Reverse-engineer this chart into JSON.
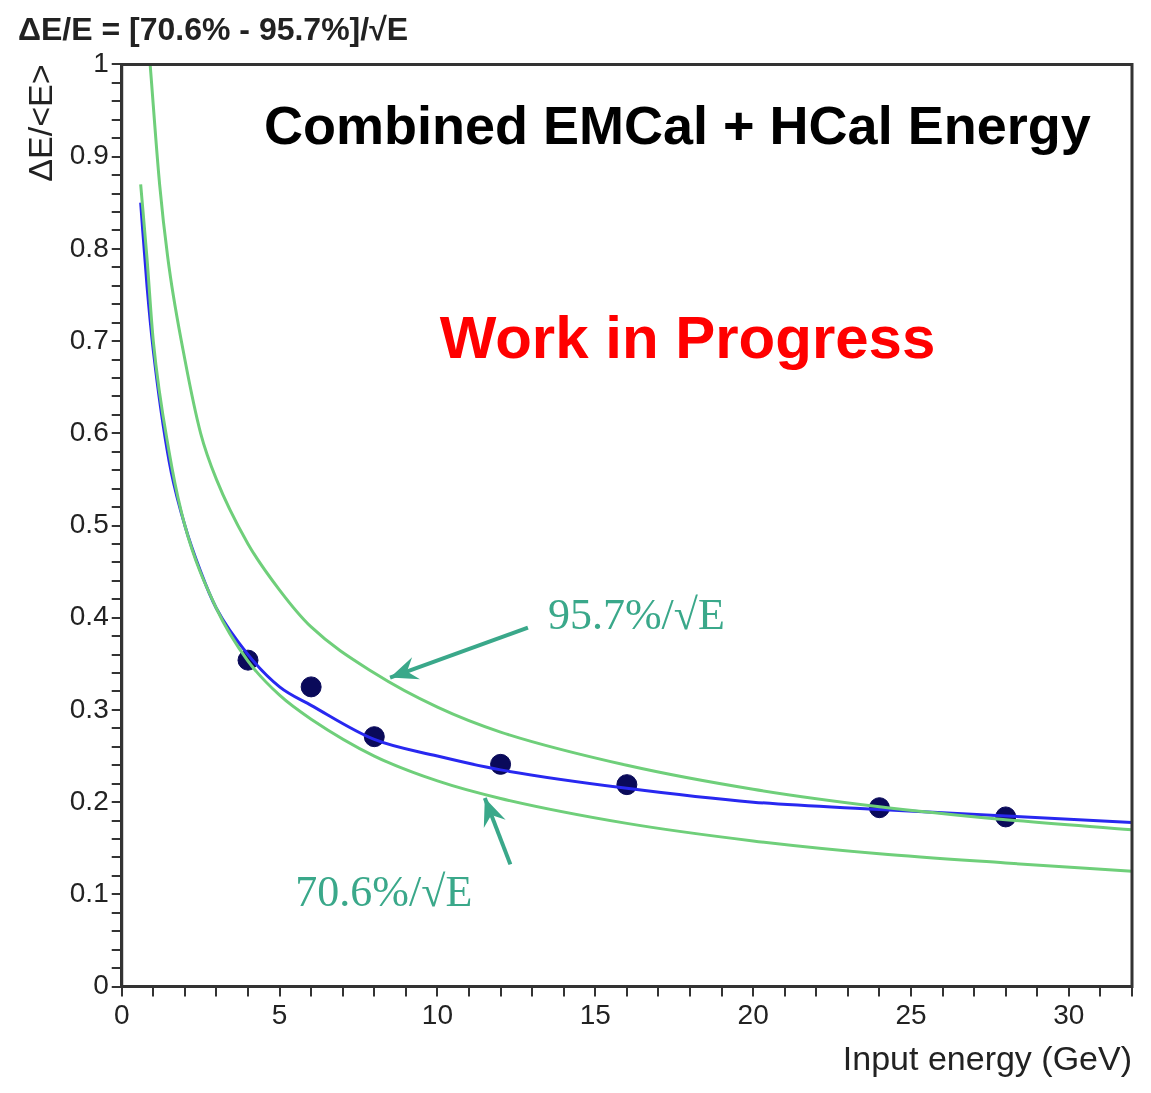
{
  "chart_data": {
    "type": "line",
    "title": "ΔE/E = [70.6% - 95.7%]/√E",
    "xlabel": "Input energy (GeV)",
    "ylabel": "ΔE/<E>",
    "annotations": [
      "Combined EMCal + HCal Energy",
      "Work in Progress"
    ],
    "xlim": [
      0,
      32
    ],
    "ylim": [
      0,
      1
    ],
    "xticks": [
      0,
      {
        "value": 1,
        "label": null
      },
      {
        "value": 2,
        "label": null
      },
      {
        "value": 3,
        "label": null
      },
      {
        "value": 4,
        "label": null
      },
      5,
      {
        "value": 6,
        "label": null
      },
      {
        "value": 7,
        "label": null
      },
      {
        "value": 8,
        "label": null
      },
      {
        "value": 9,
        "label": null
      },
      10,
      {
        "value": 11,
        "label": null
      },
      {
        "value": 12,
        "label": null
      },
      {
        "value": 13,
        "label": null
      },
      {
        "value": 14,
        "label": null
      },
      15,
      {
        "value": 16,
        "label": null
      },
      {
        "value": 17,
        "label": null
      },
      {
        "value": 18,
        "label": null
      },
      {
        "value": 19,
        "label": null
      },
      20,
      {
        "value": 21,
        "label": null
      },
      {
        "value": 22,
        "label": null
      },
      {
        "value": 23,
        "label": null
      },
      {
        "value": 24,
        "label": null
      },
      25,
      {
        "value": 26,
        "label": null
      },
      {
        "value": 27,
        "label": null
      },
      {
        "value": 28,
        "label": null
      },
      {
        "value": 29,
        "label": null
      },
      30,
      {
        "value": 31,
        "label": null
      },
      {
        "value": 32,
        "label": null
      }
    ],
    "yticks": [
      0,
      {
        "value": 0.02,
        "label": null
      },
      {
        "value": 0.04,
        "label": null
      },
      {
        "value": 0.06,
        "label": null
      },
      {
        "value": 0.08,
        "label": null
      },
      0.1,
      {
        "value": 0.12,
        "label": null
      },
      {
        "value": 0.14,
        "label": null
      },
      {
        "value": 0.16,
        "label": null
      },
      {
        "value": 0.18,
        "label": null
      },
      0.2,
      {
        "value": 0.22,
        "label": null
      },
      {
        "value": 0.24,
        "label": null
      },
      {
        "value": 0.26,
        "label": null
      },
      {
        "value": 0.28,
        "label": null
      },
      0.3,
      {
        "value": 0.32,
        "label": null
      },
      {
        "value": 0.34,
        "label": null
      },
      {
        "value": 0.36,
        "label": null
      },
      {
        "value": 0.38,
        "label": null
      },
      0.4,
      {
        "value": 0.42,
        "label": null
      },
      {
        "value": 0.44,
        "label": null
      },
      {
        "value": 0.46,
        "label": null
      },
      {
        "value": 0.48,
        "label": null
      },
      0.5,
      {
        "value": 0.52,
        "label": null
      },
      {
        "value": 0.54,
        "label": null
      },
      {
        "value": 0.56,
        "label": null
      },
      {
        "value": 0.58,
        "label": null
      },
      0.6,
      {
        "value": 0.62,
        "label": null
      },
      {
        "value": 0.64,
        "label": null
      },
      {
        "value": 0.66,
        "label": null
      },
      {
        "value": 0.68,
        "label": null
      },
      0.7,
      {
        "value": 0.72,
        "label": null
      },
      {
        "value": 0.74,
        "label": null
      },
      {
        "value": 0.76,
        "label": null
      },
      {
        "value": 0.78,
        "label": null
      },
      0.8,
      {
        "value": 0.82,
        "label": null
      },
      {
        "value": 0.84,
        "label": null
      },
      {
        "value": 0.86,
        "label": null
      },
      {
        "value": 0.88,
        "label": null
      },
      0.9,
      {
        "value": 0.92,
        "label": null
      },
      {
        "value": 0.94,
        "label": null
      },
      {
        "value": 0.96,
        "label": null
      },
      {
        "value": 0.98,
        "label": null
      },
      1
    ],
    "grid": false,
    "legend": false,
    "series": [
      {
        "name": "95.7%/√E",
        "line_style": "solid",
        "color": "#6fcf7a",
        "x": [
          0.9,
          1.2,
          1.5,
          2,
          2.5,
          3,
          4,
          5,
          6,
          8,
          10,
          12,
          16,
          20,
          24,
          28,
          32
        ],
        "values": [
          1.0,
          0.87,
          0.78,
          0.68,
          0.6,
          0.55,
          0.48,
          0.43,
          0.39,
          0.34,
          0.303,
          0.276,
          0.24,
          0.214,
          0.195,
          0.181,
          0.17
        ]
      },
      {
        "name": "70.6%/√E",
        "line_style": "solid",
        "color": "#6fcf7a",
        "x": [
          0.6,
          0.8,
          1,
          1.5,
          2,
          3,
          4,
          5,
          6,
          8,
          10,
          12,
          16,
          20,
          24,
          28,
          32
        ],
        "values": [
          0.87,
          0.79,
          0.7,
          0.58,
          0.5,
          0.41,
          0.353,
          0.316,
          0.29,
          0.25,
          0.223,
          0.204,
          0.177,
          0.158,
          0.144,
          0.134,
          0.125
        ]
      },
      {
        "line_style": "solid",
        "color": "#2828f0",
        "x": [
          0.6,
          0.8,
          1,
          1.5,
          2,
          2.5,
          3,
          4,
          5,
          6,
          8,
          10,
          12,
          16,
          20,
          24,
          28,
          32
        ],
        "values": [
          0.85,
          0.76,
          0.69,
          0.57,
          0.5,
          0.45,
          0.41,
          0.36,
          0.325,
          0.305,
          0.268,
          0.25,
          0.235,
          0.215,
          0.2,
          0.192,
          0.185,
          0.178
        ]
      },
      {
        "type": "scatter",
        "marker": "circle",
        "color": "#0a0a5a",
        "x": [
          4,
          6,
          8,
          12,
          16,
          24,
          28
        ],
        "values": [
          0.354,
          0.325,
          0.271,
          0.241,
          0.219,
          0.194,
          0.184
        ]
      }
    ]
  }
}
